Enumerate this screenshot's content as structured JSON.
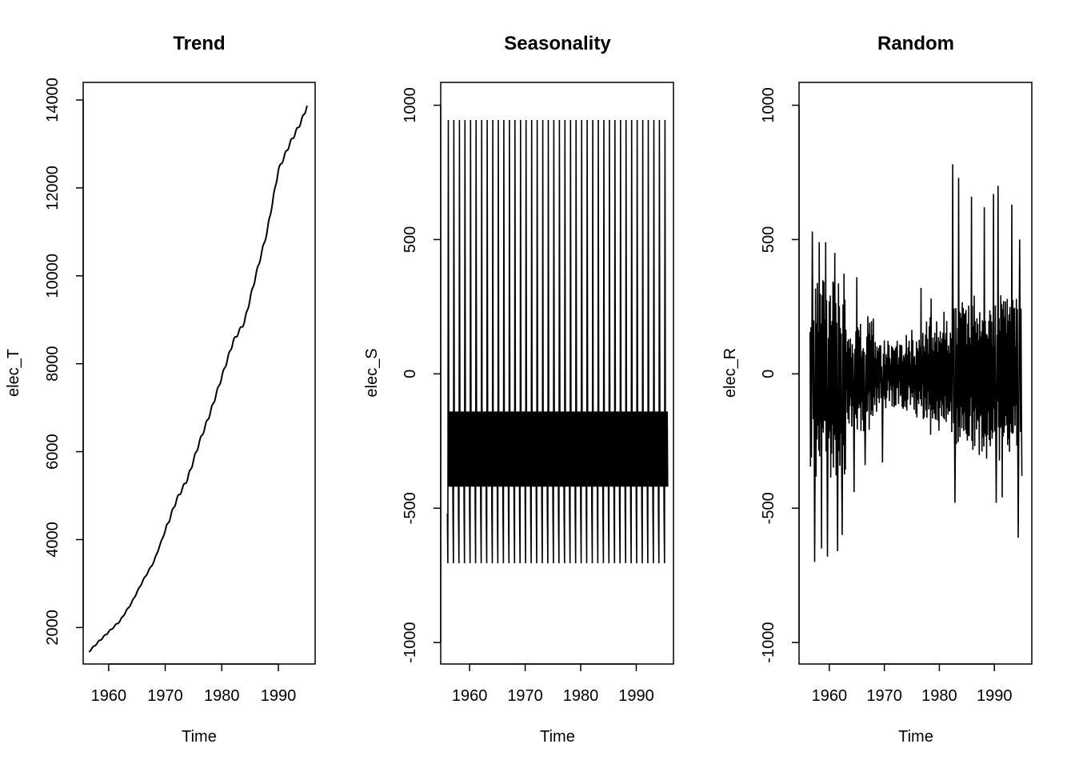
{
  "chart_data": [
    {
      "type": "line",
      "title": "Trend",
      "xlabel": "Time",
      "ylabel": "elec_T",
      "xlim": [
        1955.5,
        1996.5
      ],
      "ylim": [
        1170,
        14400
      ],
      "xticks": [
        1960,
        1970,
        1980,
        1990
      ],
      "yticks": [
        2000,
        4000,
        6000,
        8000,
        10000,
        12000,
        14000
      ],
      "x": [
        1956.5,
        1958,
        1960,
        1962,
        1964,
        1966,
        1968,
        1970,
        1972,
        1974,
        1976,
        1978,
        1980,
        1982,
        1984,
        1986,
        1988,
        1990,
        1992,
        1994,
        1995.1
      ],
      "y": [
        1450,
        1650,
        1900,
        2150,
        2550,
        3050,
        3500,
        4200,
        4900,
        5400,
        6200,
        6900,
        7700,
        8500,
        8950,
        10000,
        11000,
        12400,
        13000,
        13500,
        13870
      ]
    },
    {
      "type": "line",
      "title": "Seasonality",
      "xlabel": "Time",
      "ylabel": "elec_S",
      "xlim": [
        1954.8,
        1996.7
      ],
      "ylim": [
        -1080,
        1085
      ],
      "xticks": [
        1960,
        1970,
        1980,
        1990
      ],
      "yticks": [
        -1000,
        -500,
        0,
        500,
        1000
      ],
      "start": 1956,
      "end": 1995.7,
      "pattern": [
        -520,
        -705,
        945,
        -140,
        -420,
        -140,
        -420,
        -140,
        -420,
        -140,
        -420,
        -140
      ]
    },
    {
      "type": "line",
      "title": "Random",
      "xlabel": "Time",
      "ylabel": "elec_R",
      "xlim": [
        1954.5,
        1996.8
      ],
      "ylim": [
        -1080,
        1085
      ],
      "xticks": [
        1960,
        1970,
        1980,
        1990
      ],
      "yticks": [
        -1000,
        -500,
        0,
        500,
        1000
      ],
      "start": 1956.5,
      "end": 1995,
      "peaks": [
        [
          1956.9,
          530
        ],
        [
          1957.3,
          -700
        ],
        [
          1958.2,
          490
        ],
        [
          1958.6,
          -650
        ],
        [
          1959.3,
          490
        ],
        [
          1959.7,
          -680
        ],
        [
          1961,
          450
        ],
        [
          1961.5,
          -660
        ],
        [
          1962.3,
          -600
        ],
        [
          1964.5,
          -440
        ],
        [
          1965,
          360
        ],
        [
          1966.5,
          -340
        ],
        [
          1969.7,
          -330
        ],
        [
          1976.7,
          320
        ],
        [
          1978.5,
          280
        ],
        [
          1982.4,
          780
        ],
        [
          1982.8,
          -480
        ],
        [
          1983.5,
          730
        ],
        [
          1985.8,
          660
        ],
        [
          1988.2,
          620
        ],
        [
          1989.8,
          670
        ],
        [
          1990.3,
          -480
        ],
        [
          1990.7,
          700
        ],
        [
          1991.4,
          -460
        ],
        [
          1993.2,
          630
        ],
        [
          1994.3,
          -610
        ],
        [
          1994.6,
          500
        ],
        [
          1995,
          -380
        ]
      ]
    }
  ]
}
